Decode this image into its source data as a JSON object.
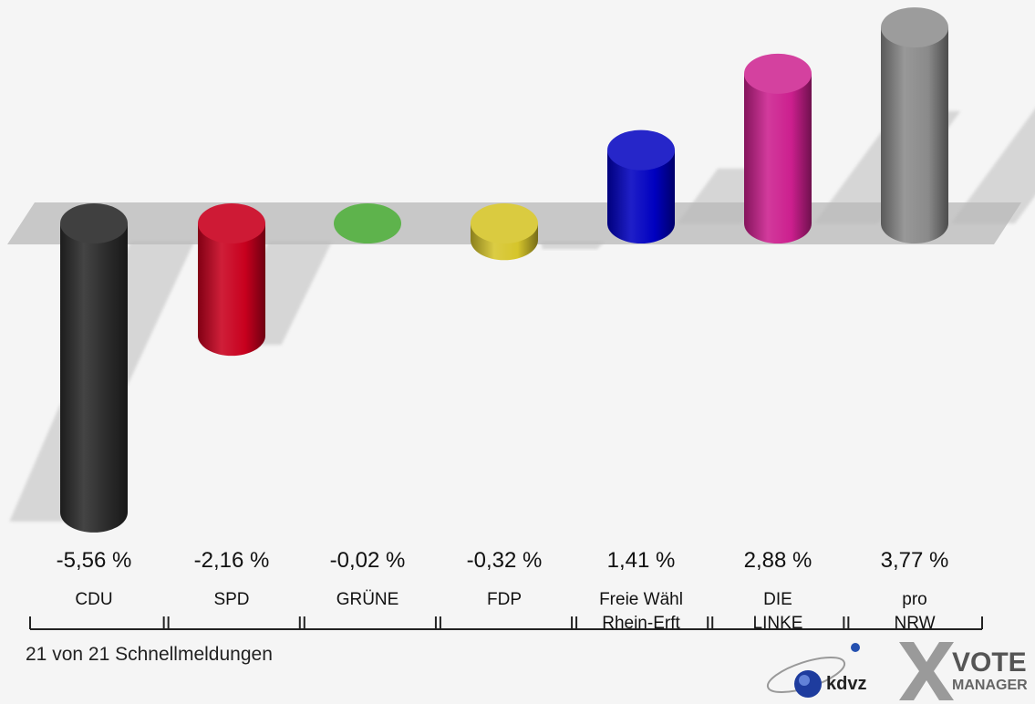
{
  "chart_data": {
    "type": "bar",
    "categories": [
      [
        "CDU"
      ],
      [
        "SPD"
      ],
      [
        "GRÜNE"
      ],
      [
        "FDP"
      ],
      [
        "Freie Wähl",
        "Rhein-Erft"
      ],
      [
        "DIE",
        "LINKE"
      ],
      [
        "pro",
        "NRW"
      ]
    ],
    "values": [
      -5.56,
      -2.16,
      -0.02,
      -0.32,
      1.41,
      2.88,
      3.77
    ],
    "value_labels": [
      "-5,56 %",
      "-2,16 %",
      "-0,02 %",
      "-0,32 %",
      "1,41 %",
      "2,88 %",
      "3,77 %"
    ],
    "colors": [
      "#2b2b2b",
      "#c8001e",
      "#4caa38",
      "#d6c52b",
      "#0000c0",
      "#cc1f8e",
      "#8a8a8a"
    ],
    "ylim": [
      -6,
      4.2
    ]
  },
  "footer": {
    "status_text": "21 von 21 Schnellmeldungen"
  },
  "logos": {
    "kdvz": "kdvz",
    "vote_line1": "VOTE",
    "vote_line2": "MANAGER"
  }
}
